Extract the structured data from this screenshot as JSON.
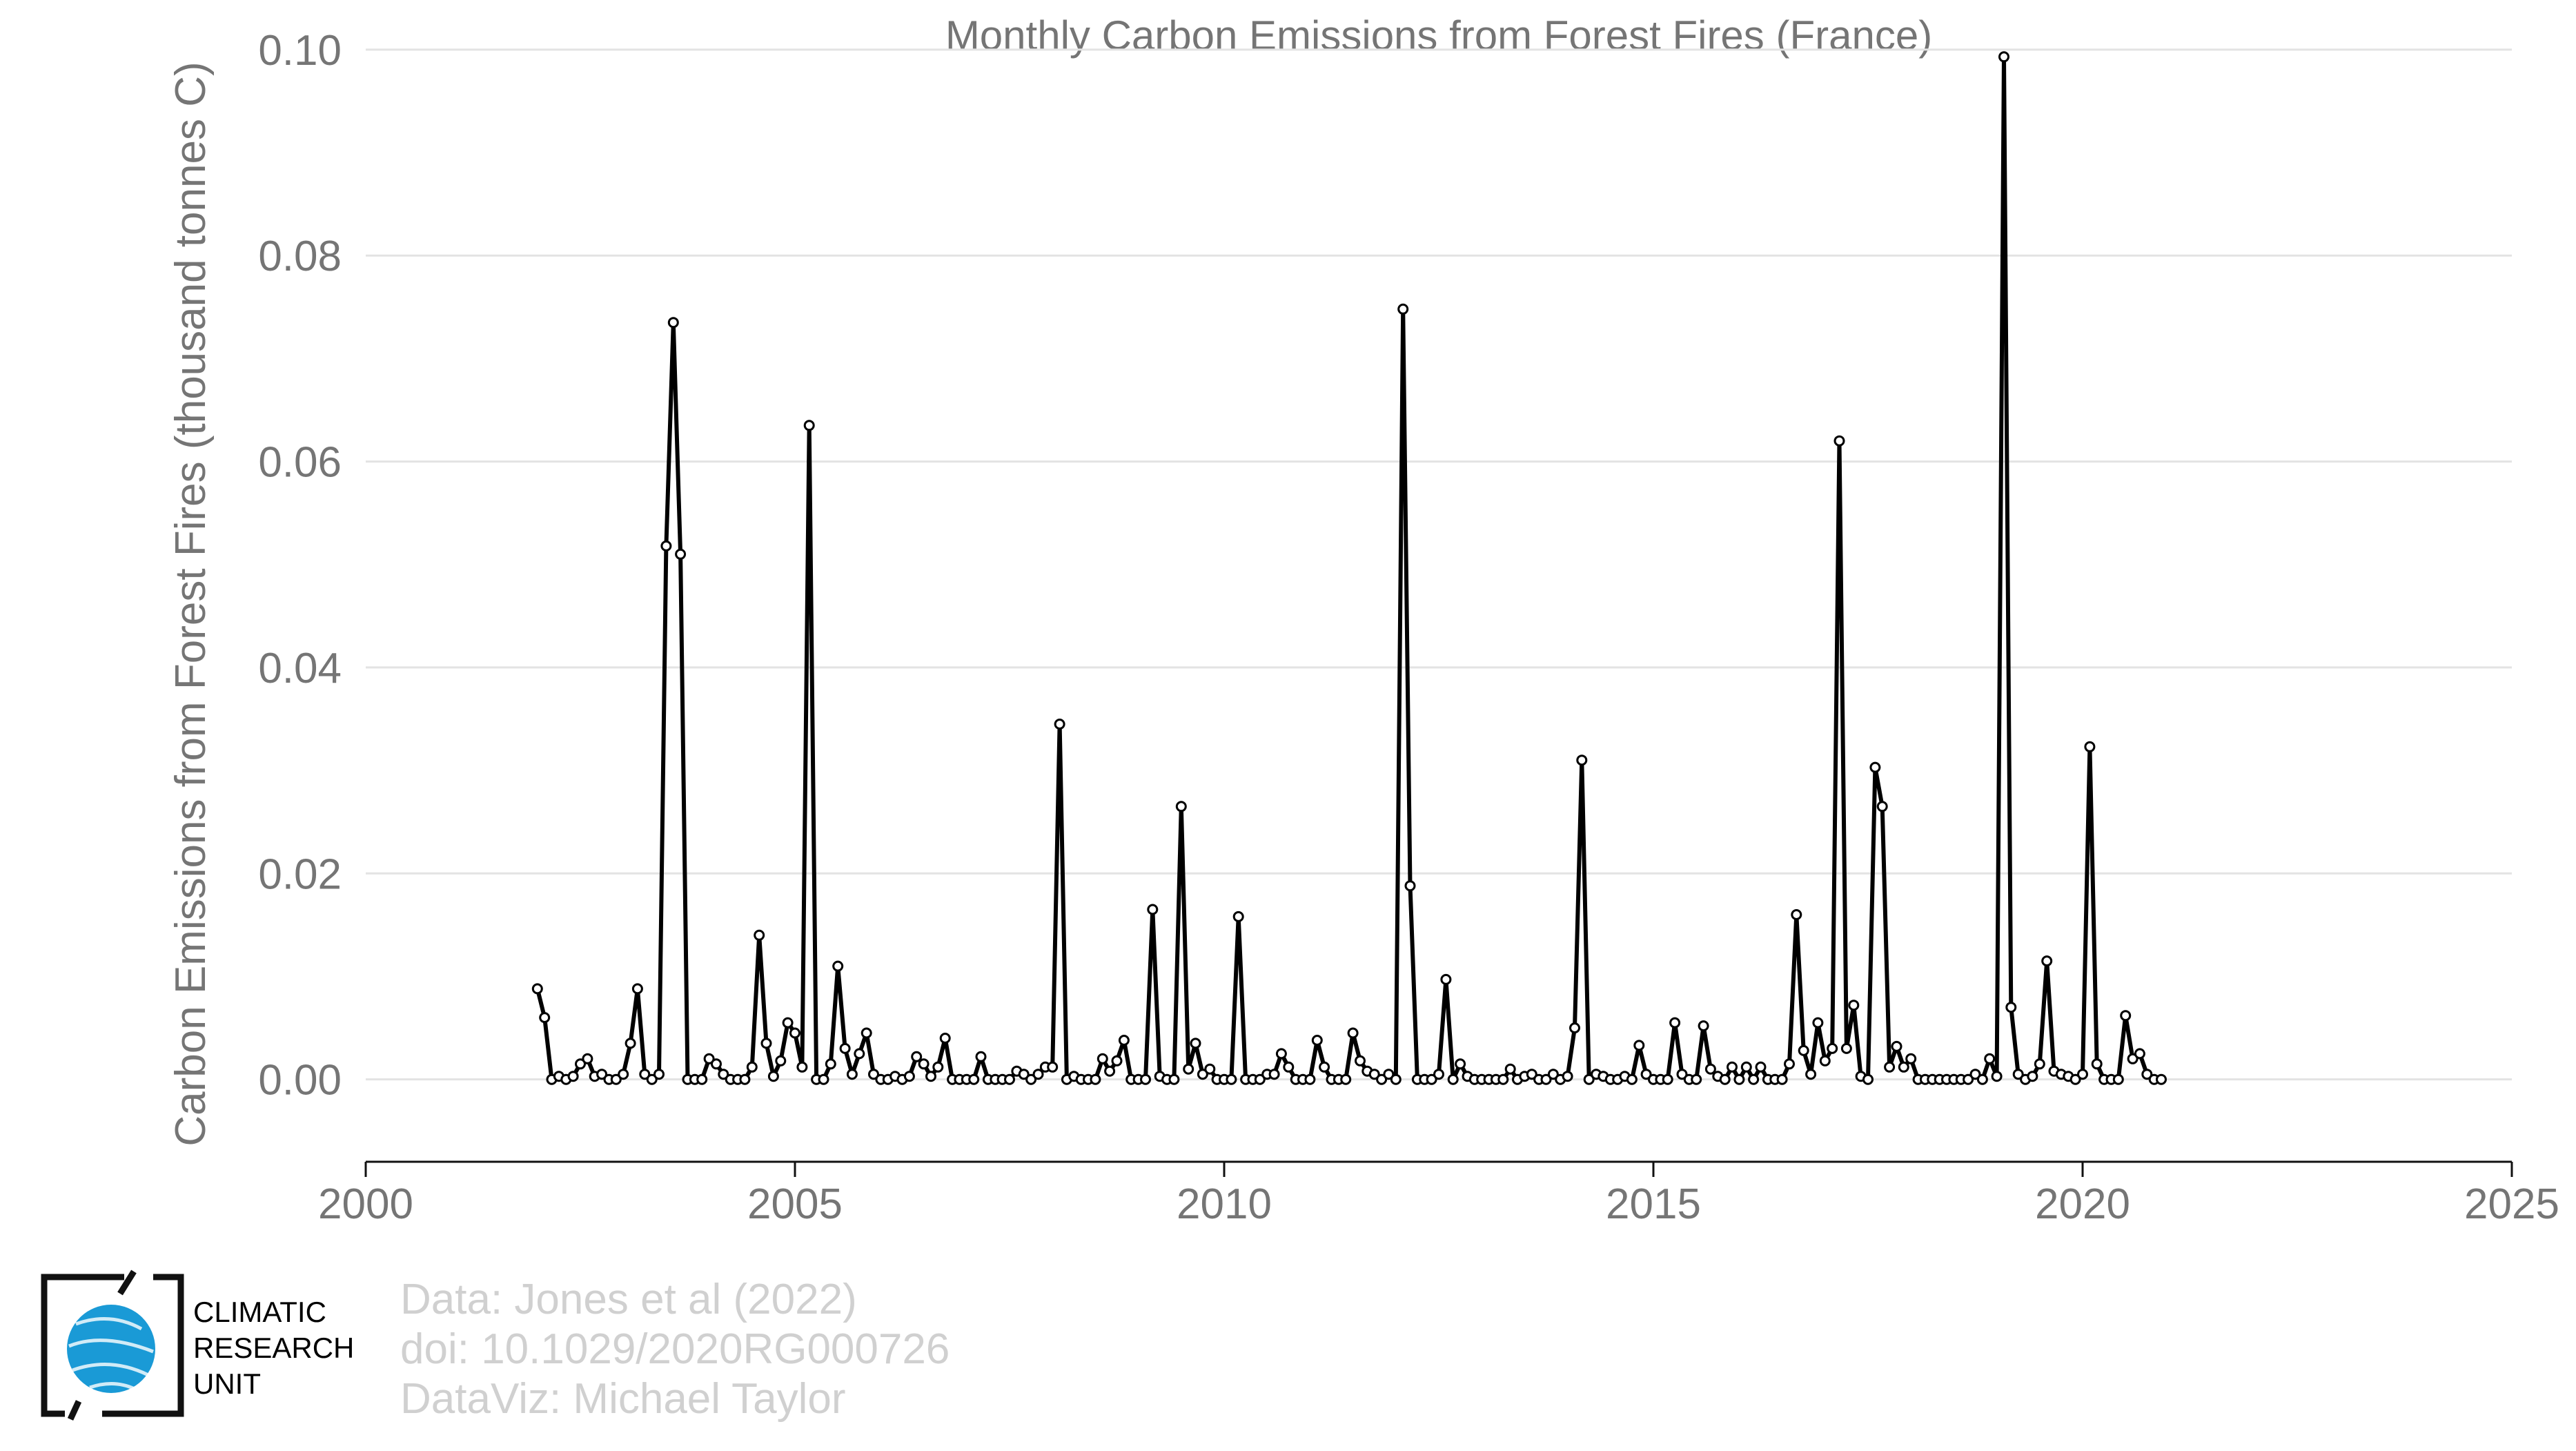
{
  "chart_data": {
    "type": "line",
    "title": "Monthly Carbon Emissions from Forest Fires (France)",
    "xlabel": "",
    "ylabel": "Carbon Emissions from Forest Fires (thousand tonnes C)",
    "xlim": [
      2000,
      2025
    ],
    "ylim": [
      -0.008,
      0.102
    ],
    "x_ticks": [
      2000,
      2005,
      2010,
      2015,
      2020,
      2025
    ],
    "x_tick_labels": [
      "2000",
      "2005",
      "2010",
      "2015",
      "2020",
      "2025"
    ],
    "y_ticks": [
      0.0,
      0.02,
      0.04,
      0.06,
      0.08,
      0.1
    ],
    "y_tick_labels": [
      "0.00",
      "0.02",
      "0.04",
      "0.06",
      "0.08",
      "0.10"
    ],
    "grid": "horizontal",
    "line_color": "#000000",
    "marker": "open-circle",
    "series": [
      {
        "x_start": 2002.0,
        "x_step_months": 1,
        "values": [
          0.0088,
          0.006,
          0.0,
          0.0003,
          0.0,
          0.0003,
          0.0015,
          0.002,
          0.0003,
          0.0005,
          0.0,
          0.0,
          0.0005,
          0.0035,
          0.0088,
          0.0005,
          0.0,
          0.0005,
          0.0518,
          0.0735,
          0.051,
          0.0,
          0.0,
          0.0,
          0.002,
          0.0015,
          0.0005,
          0.0,
          0.0,
          0.0,
          0.0012,
          0.014,
          0.0035,
          0.0003,
          0.0018,
          0.0055,
          0.0045,
          0.0012,
          0.0635,
          0.0,
          0.0,
          0.0015,
          0.011,
          0.003,
          0.0005,
          0.0025,
          0.0045,
          0.0005,
          0.0,
          0.0,
          0.0003,
          0.0,
          0.0003,
          0.0022,
          0.0015,
          0.0003,
          0.0012,
          0.004,
          0.0,
          0.0,
          0.0,
          0.0,
          0.0022,
          0.0,
          0.0,
          0.0,
          0.0,
          0.0008,
          0.0005,
          0.0,
          0.0005,
          0.0012,
          0.0012,
          0.0345,
          0.0,
          0.0003,
          0.0,
          0.0,
          0.0,
          0.002,
          0.0008,
          0.0018,
          0.0038,
          0.0,
          0.0,
          0.0,
          0.0165,
          0.0003,
          0.0,
          0.0,
          0.0265,
          0.001,
          0.0035,
          0.0005,
          0.001,
          0.0,
          0.0,
          0.0,
          0.0158,
          0.0,
          0.0,
          0.0,
          0.0005,
          0.0005,
          0.0025,
          0.0012,
          0.0,
          0.0,
          0.0,
          0.0038,
          0.0012,
          0.0,
          0.0,
          0.0,
          0.0045,
          0.0018,
          0.0008,
          0.0005,
          0.0,
          0.0005,
          0.0,
          0.0748,
          0.0188,
          0.0,
          0.0,
          0.0,
          0.0005,
          0.0097,
          0.0,
          0.0015,
          0.0003,
          0.0,
          0.0,
          0.0,
          0.0,
          0.0,
          0.001,
          0.0,
          0.0003,
          0.0005,
          0.0,
          0.0,
          0.0005,
          0.0,
          0.0003,
          0.005,
          0.031,
          0.0,
          0.0005,
          0.0003,
          0.0,
          0.0,
          0.0003,
          0.0,
          0.0033,
          0.0005,
          0.0,
          0.0,
          0.0,
          0.0055,
          0.0005,
          0.0,
          0.0,
          0.0052,
          0.001,
          0.0003,
          0.0,
          0.0012,
          0.0,
          0.0012,
          0.0,
          0.0012,
          0.0,
          0.0,
          0.0,
          0.0015,
          0.016,
          0.0028,
          0.0005,
          0.0055,
          0.0018,
          0.003,
          0.062,
          0.003,
          0.0072,
          0.0003,
          0.0,
          0.0303,
          0.0265,
          0.0012,
          0.0032,
          0.0012,
          0.002,
          0.0,
          0.0,
          0.0,
          0.0,
          0.0,
          0.0,
          0.0,
          0.0,
          0.0005,
          0.0,
          0.002,
          0.0003,
          0.0993,
          0.007,
          0.0005,
          0.0,
          0.0003,
          0.0015,
          0.0115,
          0.0008,
          0.0005,
          0.0003,
          0.0,
          0.0005,
          0.0323,
          0.0015,
          0.0,
          0.0,
          0.0,
          0.0062,
          0.002,
          0.0025,
          0.0005,
          0.0,
          0.0
        ]
      }
    ]
  },
  "footer": {
    "credit_lines": [
      "Data: Jones et al (2022)",
      "doi: 10.1029/2020RG000726",
      "DataViz: Michael Taylor"
    ]
  },
  "logo": {
    "text_lines": [
      "CLIMATIC",
      "RESEARCH",
      "UNIT"
    ],
    "globe_color": "#1a9ad6"
  }
}
